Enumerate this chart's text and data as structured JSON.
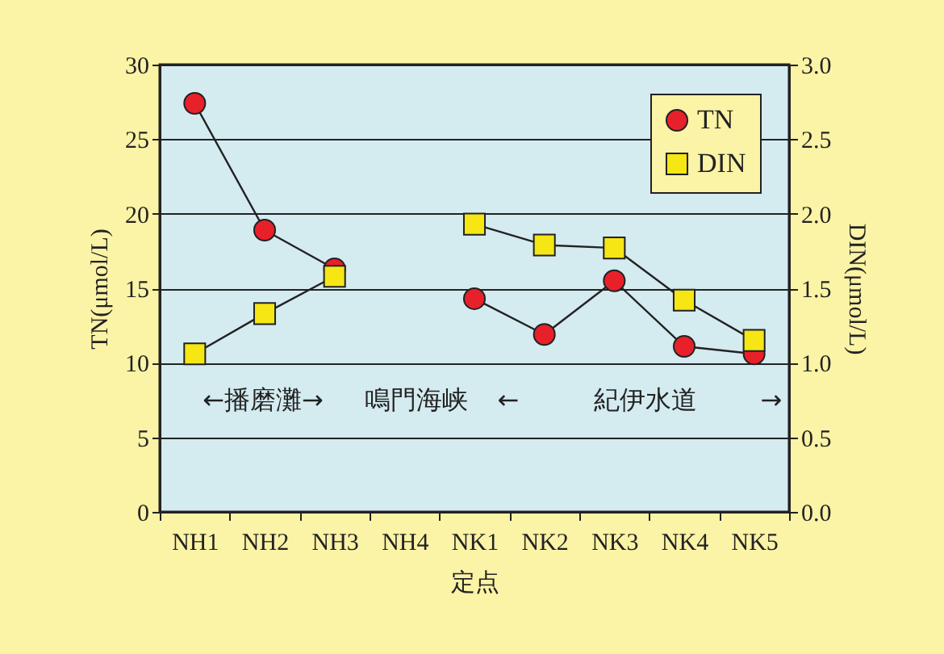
{
  "chart_data": {
    "type": "line",
    "categories": [
      "NH1",
      "NH2",
      "NH3",
      "NH4",
      "NK1",
      "NK2",
      "NK3",
      "NK4",
      "NK5"
    ],
    "series": [
      {
        "name": "TN",
        "color": "#e8202a",
        "marker": "circle",
        "values": [
          27.4,
          18.9,
          16.3,
          null,
          14.3,
          11.9,
          15.5,
          11.1,
          10.6
        ]
      },
      {
        "name": "DIN",
        "color": "#f5e614",
        "marker": "square",
        "axis": "y2",
        "values": [
          1.06,
          1.33,
          1.58,
          null,
          1.93,
          1.79,
          1.77,
          1.42,
          1.15
        ]
      }
    ],
    "xlabel": "定点",
    "ylabel": "TN(μmol/L)",
    "y2label": "DIN(μmol/L)",
    "ylim": [
      0,
      30
    ],
    "yticks": [
      0,
      5,
      10,
      15,
      20,
      25,
      30
    ],
    "y2lim": [
      0,
      3
    ],
    "y2ticks": [
      {
        "value": 0,
        "label": "0.0"
      },
      {
        "value": 0.5,
        "label": "0.5"
      },
      {
        "value": 1,
        "label": "1.0"
      },
      {
        "value": 1.5,
        "label": "1.5"
      },
      {
        "value": 2,
        "label": "2.0"
      },
      {
        "value": 2.5,
        "label": "2.5"
      },
      {
        "value": 3,
        "label": "3.0"
      }
    ],
    "annotations": [
      "←播磨灘→",
      "鳴門海峡",
      "←",
      "紀伊水道",
      "→"
    ],
    "grid": "y",
    "legend": "top right",
    "line_style": "solid"
  }
}
